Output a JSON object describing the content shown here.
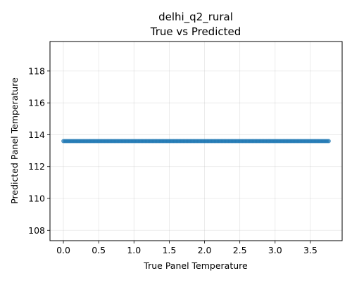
{
  "chart_data": {
    "type": "scatter",
    "title_lines": [
      "delhi_q2_rural",
      "True vs Predicted"
    ],
    "xlabel": "True Panel Temperature",
    "ylabel": "Predicted Panel Temperature",
    "xlim": [
      -0.19,
      3.95
    ],
    "ylim": [
      107.35,
      119.85
    ],
    "x_ticks": [
      0.0,
      0.5,
      1.0,
      1.5,
      2.0,
      2.5,
      3.0,
      3.5
    ],
    "x_tick_labels": [
      "0.0",
      "0.5",
      "1.0",
      "1.5",
      "2.0",
      "2.5",
      "3.0",
      "3.5"
    ],
    "y_ticks": [
      108,
      110,
      112,
      114,
      116,
      118
    ],
    "y_tick_labels": [
      "108",
      "110",
      "112",
      "114",
      "116",
      "118"
    ],
    "grid": true,
    "legend": "none",
    "marker_color": "#1f77b4",
    "series": [
      {
        "x_start": 0.0,
        "x_end": 3.76,
        "x_step": 0.02,
        "y": 113.6
      }
    ]
  }
}
